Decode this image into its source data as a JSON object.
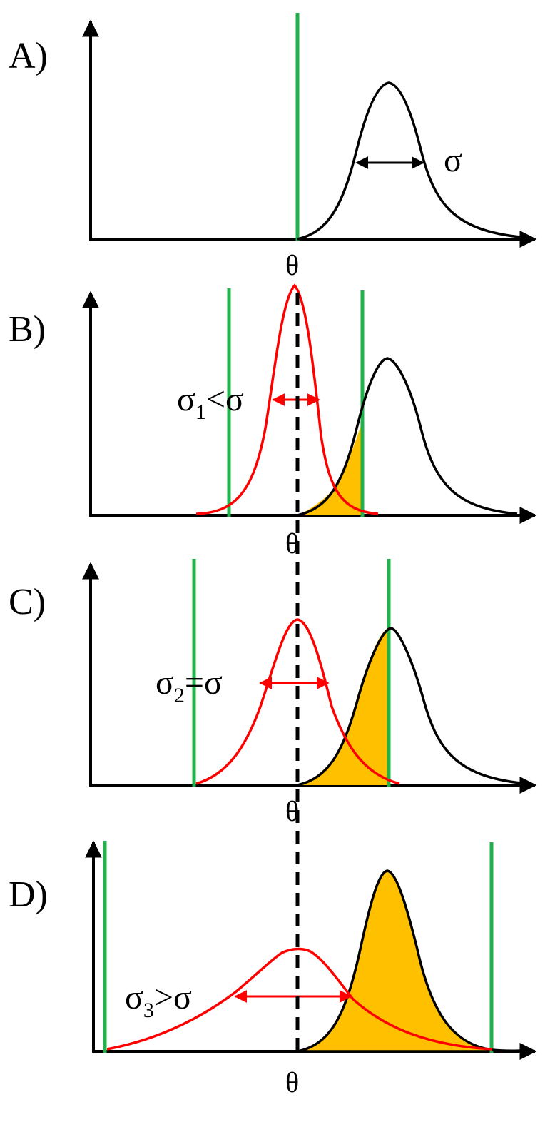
{
  "colors": {
    "threshold_green": "#22b24c",
    "reference_black": "#000000",
    "test_red": "#ff0000",
    "overlap_fill": "#ffc000"
  },
  "panels": {
    "a": {
      "label": "A)",
      "theta": "θ",
      "sigma": "σ"
    },
    "b": {
      "label": "B)",
      "theta": "θ",
      "sigma_base": "σ",
      "sigma_sub": "1",
      "sigma_rest": "<σ"
    },
    "c": {
      "label": "C)",
      "theta": "θ",
      "sigma_base": "σ",
      "sigma_sub": "2",
      "sigma_rest": "=σ"
    },
    "d": {
      "label": "D)",
      "theta": "θ",
      "sigma_base": "σ",
      "sigma_sub": "3",
      "sigma_rest": ">σ"
    }
  },
  "icons": [
    "arrow-head-icon",
    "double-arrow-icon"
  ]
}
